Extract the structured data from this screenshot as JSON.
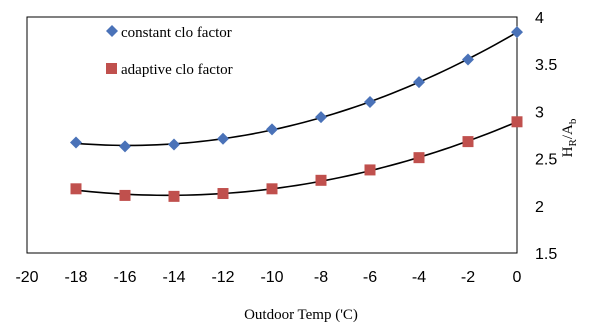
{
  "chart_data": {
    "type": "scatter",
    "xlabel": "Outdoor Temp ('C)",
    "ylabel": {
      "main": "H",
      "sub1": "R",
      "slash": "/A",
      "sub2": "b"
    },
    "xlim": [
      -20,
      0
    ],
    "ylim": [
      1.5,
      4
    ],
    "x_ticks": [
      "-20",
      "-18",
      "-16",
      "-14",
      "-12",
      "-10",
      "-8",
      "-6",
      "-4",
      "-2",
      "0"
    ],
    "x_tick_values": [
      -20,
      -18,
      -16,
      -14,
      -12,
      -10,
      -8,
      -6,
      -4,
      -2,
      0
    ],
    "y_ticks": [
      "1.5",
      "2",
      "2.5",
      "3",
      "3.5",
      "4"
    ],
    "y_tick_values": [
      1.5,
      2,
      2.5,
      3,
      3.5,
      4
    ],
    "grid": false,
    "y_axis_side": "right",
    "legend_position": "top-left",
    "series": [
      {
        "name": "constant clo factor",
        "marker": "diamond",
        "color": "#4a72b8",
        "trendline": "polynomial",
        "x": [
          -18,
          -16,
          -14,
          -12,
          -10,
          -8,
          -6,
          -4,
          -2,
          0
        ],
        "y": [
          2.67,
          2.63,
          2.65,
          2.71,
          2.81,
          2.94,
          3.1,
          3.31,
          3.55,
          3.84
        ]
      },
      {
        "name": "adaptive clo factor",
        "marker": "square",
        "color": "#c0504d",
        "trendline": "polynomial",
        "x": [
          -18,
          -16,
          -14,
          -12,
          -10,
          -8,
          -6,
          -4,
          -2,
          0
        ],
        "y": [
          2.18,
          2.11,
          2.1,
          2.13,
          2.18,
          2.27,
          2.38,
          2.51,
          2.68,
          2.89
        ]
      }
    ]
  }
}
